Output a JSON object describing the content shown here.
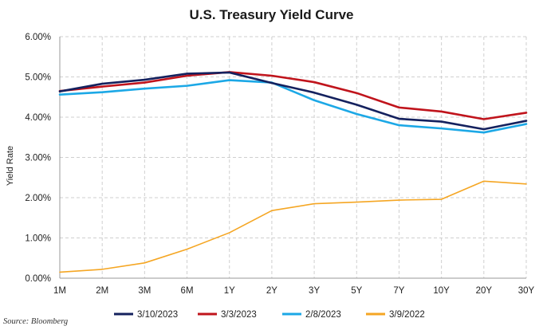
{
  "chart_data": {
    "type": "line",
    "title": "U.S. Treasury Yield Curve",
    "xlabel": "",
    "ylabel": "Yield Rate",
    "source": "Source: Bloomberg",
    "categories": [
      "1M",
      "2M",
      "3M",
      "6M",
      "1Y",
      "2Y",
      "3Y",
      "5Y",
      "7Y",
      "10Y",
      "20Y",
      "30Y"
    ],
    "ylim": [
      0,
      6
    ],
    "yticks": [
      0,
      1,
      2,
      3,
      4,
      5,
      6
    ],
    "ytick_labels": [
      "0.00%",
      "1.00%",
      "2.00%",
      "3.00%",
      "4.00%",
      "5.00%",
      "6.00%"
    ],
    "grid": true,
    "legend_position": "bottom",
    "series": [
      {
        "name": "3/10/2023",
        "color": "#14215e",
        "values": [
          4.64,
          4.83,
          4.93,
          5.08,
          5.11,
          4.85,
          4.61,
          4.31,
          3.96,
          3.89,
          3.7,
          3.91
        ]
      },
      {
        "name": "3/3/2023",
        "color": "#c0141c",
        "values": [
          4.65,
          4.76,
          4.86,
          5.03,
          5.12,
          5.03,
          4.87,
          4.6,
          4.24,
          4.14,
          3.95,
          4.11
        ]
      },
      {
        "name": "2/8/2023",
        "color": "#1ca8e6",
        "values": [
          4.56,
          4.62,
          4.71,
          4.78,
          4.92,
          4.86,
          4.42,
          4.08,
          3.8,
          3.72,
          3.62,
          3.83
        ]
      },
      {
        "name": "3/9/2022",
        "color": "#f5a623",
        "values": [
          0.15,
          0.22,
          0.38,
          0.72,
          1.13,
          1.68,
          1.85,
          1.89,
          1.94,
          1.96,
          2.41,
          2.34
        ]
      }
    ]
  }
}
